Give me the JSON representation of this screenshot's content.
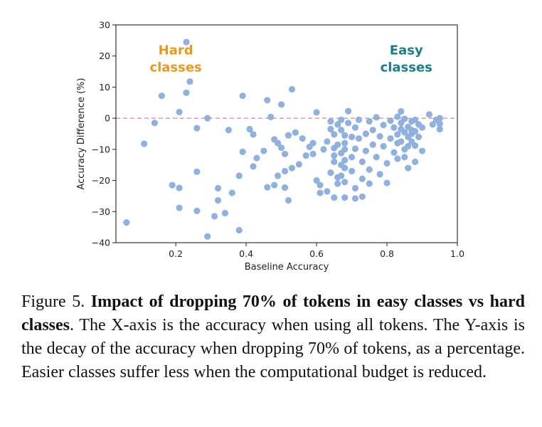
{
  "chart_data": {
    "type": "scatter",
    "title": "",
    "xlabel": "Baseline Accuracy",
    "ylabel": "Accuracy Difference (%)",
    "xlim": [
      0.03,
      1.0
    ],
    "ylim": [
      -40,
      30
    ],
    "xticks": [
      0.2,
      0.4,
      0.6,
      0.8,
      1.0
    ],
    "yticks": [
      -40,
      -30,
      -20,
      -10,
      0,
      10,
      20,
      30
    ],
    "xtick_labels": [
      "0.2",
      "0.4",
      "0.6",
      "0.8",
      "1.0"
    ],
    "ytick_labels": [
      "−40",
      "−30",
      "−20",
      "−10",
      "0",
      "10",
      "20",
      "30"
    ],
    "grid": false,
    "reference_line": {
      "y": 0,
      "style": "dashed",
      "color": "#e8a0a0"
    },
    "point_color": "#8fb1e0",
    "annotations": [
      {
        "text": [
          "Hard",
          "classes"
        ],
        "color": "#e59a1c",
        "x": 0.2,
        "y": 20.5
      },
      {
        "text": [
          "Easy",
          "classes"
        ],
        "color": "#1a7f86",
        "x": 0.855,
        "y": 20.5
      }
    ],
    "points": [
      [
        0.06,
        -33.5
      ],
      [
        0.11,
        -8.2
      ],
      [
        0.14,
        -1.5
      ],
      [
        0.16,
        7.2
      ],
      [
        0.19,
        -21.5
      ],
      [
        0.21,
        2.0
      ],
      [
        0.21,
        -28.8
      ],
      [
        0.21,
        -22.4
      ],
      [
        0.23,
        24.5
      ],
      [
        0.23,
        8.2
      ],
      [
        0.24,
        11.8
      ],
      [
        0.26,
        -3.2
      ],
      [
        0.26,
        -17.2
      ],
      [
        0.26,
        -29.8
      ],
      [
        0.29,
        0.0
      ],
      [
        0.29,
        -38.0
      ],
      [
        0.31,
        -31.5
      ],
      [
        0.32,
        -26.4
      ],
      [
        0.32,
        -22.5
      ],
      [
        0.34,
        -30.5
      ],
      [
        0.35,
        -3.8
      ],
      [
        0.36,
        -24.0
      ],
      [
        0.38,
        -36.0
      ],
      [
        0.38,
        -18.5
      ],
      [
        0.39,
        7.2
      ],
      [
        0.39,
        -10.8
      ],
      [
        0.41,
        -3.5
      ],
      [
        0.42,
        -5.2
      ],
      [
        0.42,
        -15.5
      ],
      [
        0.43,
        -12.8
      ],
      [
        0.45,
        -10.5
      ],
      [
        0.46,
        5.8
      ],
      [
        0.46,
        -22.2
      ],
      [
        0.47,
        0.4
      ],
      [
        0.48,
        -21.5
      ],
      [
        0.48,
        -6.8
      ],
      [
        0.49,
        -18.5
      ],
      [
        0.49,
        -8.0
      ],
      [
        0.5,
        4.4
      ],
      [
        0.5,
        -9.5
      ],
      [
        0.51,
        -22.3
      ],
      [
        0.51,
        -17.0
      ],
      [
        0.51,
        -11.5
      ],
      [
        0.52,
        -5.5
      ],
      [
        0.52,
        -26.4
      ],
      [
        0.53,
        9.3
      ],
      [
        0.53,
        -16.0
      ],
      [
        0.54,
        -4.6
      ],
      [
        0.55,
        -14.8
      ],
      [
        0.56,
        -6.5
      ],
      [
        0.57,
        -12.0
      ],
      [
        0.58,
        -9.2
      ],
      [
        0.59,
        -8.0
      ],
      [
        0.59,
        -11.5
      ],
      [
        0.6,
        -20.0
      ],
      [
        0.6,
        1.9
      ],
      [
        0.61,
        -21.5
      ],
      [
        0.61,
        -24.0
      ],
      [
        0.62,
        -10.0
      ],
      [
        0.63,
        -7.5
      ],
      [
        0.63,
        -23.5
      ],
      [
        0.64,
        -1.0
      ],
      [
        0.64,
        -3.5
      ],
      [
        0.64,
        -17.5
      ],
      [
        0.65,
        -5.2
      ],
      [
        0.65,
        -9.6
      ],
      [
        0.65,
        -12.0
      ],
      [
        0.65,
        -14.0
      ],
      [
        0.65,
        -25.5
      ],
      [
        0.66,
        -2.0
      ],
      [
        0.66,
        -8.5
      ],
      [
        0.66,
        -19.0
      ],
      [
        0.66,
        -21.0
      ],
      [
        0.67,
        -0.5
      ],
      [
        0.67,
        -3.8
      ],
      [
        0.67,
        -11.2
      ],
      [
        0.67,
        -15.0
      ],
      [
        0.67,
        -18.5
      ],
      [
        0.68,
        -5.5
      ],
      [
        0.68,
        -8.0
      ],
      [
        0.68,
        -10.0
      ],
      [
        0.68,
        -13.5
      ],
      [
        0.68,
        -16.0
      ],
      [
        0.68,
        -20.5
      ],
      [
        0.68,
        -25.5
      ],
      [
        0.69,
        -1.5
      ],
      [
        0.69,
        2.3
      ],
      [
        0.7,
        -6.0
      ],
      [
        0.7,
        -12.5
      ],
      [
        0.7,
        -17.0
      ],
      [
        0.71,
        -3.0
      ],
      [
        0.71,
        -9.8
      ],
      [
        0.71,
        -22.5
      ],
      [
        0.71,
        -25.8
      ],
      [
        0.72,
        -0.5
      ],
      [
        0.72,
        -6.5
      ],
      [
        0.73,
        -14.0
      ],
      [
        0.73,
        -19.5
      ],
      [
        0.73,
        -25.2
      ],
      [
        0.74,
        -5.0
      ],
      [
        0.74,
        -10.5
      ],
      [
        0.75,
        -1.0
      ],
      [
        0.75,
        -16.5
      ],
      [
        0.75,
        -21.0
      ],
      [
        0.76,
        -3.8
      ],
      [
        0.76,
        -8.5
      ],
      [
        0.77,
        0.3
      ],
      [
        0.77,
        -12.5
      ],
      [
        0.78,
        -5.8
      ],
      [
        0.78,
        -18.0
      ],
      [
        0.79,
        -2.2
      ],
      [
        0.79,
        -9.0
      ],
      [
        0.8,
        -14.5
      ],
      [
        0.8,
        -20.8
      ],
      [
        0.81,
        -0.8
      ],
      [
        0.81,
        -6.5
      ],
      [
        0.82,
        -11.0
      ],
      [
        0.82,
        -3.0
      ],
      [
        0.83,
        0.5
      ],
      [
        0.83,
        -8.0
      ],
      [
        0.83,
        -5.2
      ],
      [
        0.83,
        -13.0
      ],
      [
        0.84,
        -1.5
      ],
      [
        0.84,
        2.2
      ],
      [
        0.84,
        -3.5
      ],
      [
        0.84,
        -7.5
      ],
      [
        0.85,
        -0.2
      ],
      [
        0.85,
        -4.5
      ],
      [
        0.85,
        -10.0
      ],
      [
        0.85,
        -12.5
      ],
      [
        0.86,
        -2.8
      ],
      [
        0.86,
        -6.0
      ],
      [
        0.86,
        -9.0
      ],
      [
        0.86,
        -16.0
      ],
      [
        0.87,
        -1.0
      ],
      [
        0.87,
        -3.8
      ],
      [
        0.87,
        -5.0
      ],
      [
        0.87,
        -7.5
      ],
      [
        0.88,
        -0.5
      ],
      [
        0.88,
        -4.2
      ],
      [
        0.88,
        -8.8
      ],
      [
        0.88,
        -14.0
      ],
      [
        0.89,
        -2.0
      ],
      [
        0.89,
        -6.0
      ],
      [
        0.9,
        -3.0
      ],
      [
        0.9,
        -10.5
      ],
      [
        0.92,
        1.2
      ],
      [
        0.93,
        -2.0
      ],
      [
        0.94,
        -0.5
      ],
      [
        0.95,
        -3.5
      ],
      [
        0.95,
        -1.8
      ],
      [
        0.95,
        0.0
      ]
    ]
  },
  "caption": {
    "prefix": "Figure 5. ",
    "bold": "Impact of dropping 70% of tokens in easy classes vs hard classes",
    "rest": ". The X-axis is the accuracy when using all tokens. The Y-axis is the decay of the accuracy when dropping 70% of tokens, as a percentage. Easier classes suffer less when the computational budget is reduced."
  }
}
